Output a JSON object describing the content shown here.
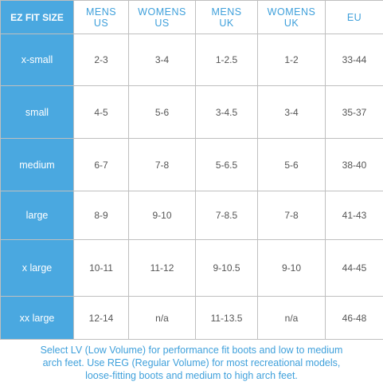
{
  "table": {
    "corner_label": "EZ FIT SIZE",
    "columns": [
      {
        "line1": "MENS",
        "line2": "US"
      },
      {
        "line1": "WOMENS",
        "line2": "US"
      },
      {
        "line1": "MENS",
        "line2": "UK"
      },
      {
        "line1": "WOMENS",
        "line2": "UK"
      },
      {
        "line1": "EU",
        "line2": ""
      }
    ],
    "rows": [
      {
        "size": "x-small",
        "cells": [
          "2-3",
          "3-4",
          "1-2.5",
          "1-2",
          "33-44"
        ]
      },
      {
        "size": "small",
        "cells": [
          "4-5",
          "5-6",
          "3-4.5",
          "3-4",
          "35-37"
        ]
      },
      {
        "size": "medium",
        "cells": [
          "6-7",
          "7-8",
          "5-6.5",
          "5-6",
          "38-40"
        ]
      },
      {
        "size": "large",
        "cells": [
          "8-9",
          "9-10",
          "7-8.5",
          "7-8",
          "41-43"
        ]
      },
      {
        "size": "x large",
        "cells": [
          "10-11",
          "11-12",
          "9-10.5",
          "9-10",
          "44-45"
        ]
      },
      {
        "size": "xx large",
        "cells": [
          "12-14",
          "n/a",
          "11-13.5",
          "n/a",
          "46-48"
        ]
      }
    ]
  },
  "note": {
    "lines": [
      "Select LV (Low Volume) for performance fit boots and low to medium",
      "arch feet. Use REG (Regular Volume) for most recreational models,",
      "loose-fitting boots and medium to high arch feet."
    ]
  },
  "colors": {
    "accent": "#4aa8e0",
    "header_text": "#3fa0db",
    "cell_text": "#555555",
    "grid": "#bfbfbf"
  }
}
